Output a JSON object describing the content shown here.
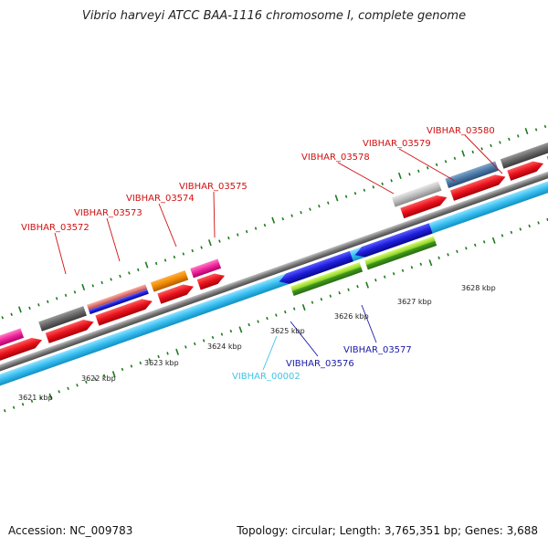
{
  "header": {
    "title": "Vibrio harveyi ATCC BAA-1116 chromosome I, complete genome"
  },
  "footer": {
    "accession": "Accession: NC_009783",
    "stats": "Topology: circular; Length: 3,765,351 bp; Genes: 3,688"
  },
  "colors": {
    "backbone": "#7a7a7a",
    "forward_gene": "#e8121d",
    "cds_band": "#36bdf0",
    "reverse_gene": "#1d1ddb",
    "green_gene": "#3f9a1f",
    "label_forward": "#d01010",
    "label_reverse": "#1a1aa8",
    "label_cyan": "#3fc4e6",
    "tick": "#1f7a1f"
  },
  "scale": {
    "ticks": [
      {
        "label": "3621 kbp"
      },
      {
        "label": "3622 kbp"
      },
      {
        "label": "3623 kbp"
      },
      {
        "label": "3624 kbp"
      },
      {
        "label": "3625 kbp"
      },
      {
        "label": "3626 kbp"
      },
      {
        "label": "3627 kbp"
      },
      {
        "label": "3628 kbp"
      }
    ]
  },
  "gene_labels": [
    {
      "text": "VIBHAR_03572",
      "strand": "forward"
    },
    {
      "text": "VIBHAR_03573",
      "strand": "forward"
    },
    {
      "text": "VIBHAR_03574",
      "strand": "forward"
    },
    {
      "text": "VIBHAR_03575",
      "strand": "forward"
    },
    {
      "text": "VIBHAR_03578",
      "strand": "forward"
    },
    {
      "text": "VIBHAR_03579",
      "strand": "forward"
    },
    {
      "text": "VIBHAR_03580",
      "strand": "forward"
    },
    {
      "text": "VIBHAR_00002",
      "strand": "cyan"
    },
    {
      "text": "VIBHAR_03576",
      "strand": "reverse"
    },
    {
      "text": "VIBHAR_03577",
      "strand": "reverse"
    }
  ]
}
